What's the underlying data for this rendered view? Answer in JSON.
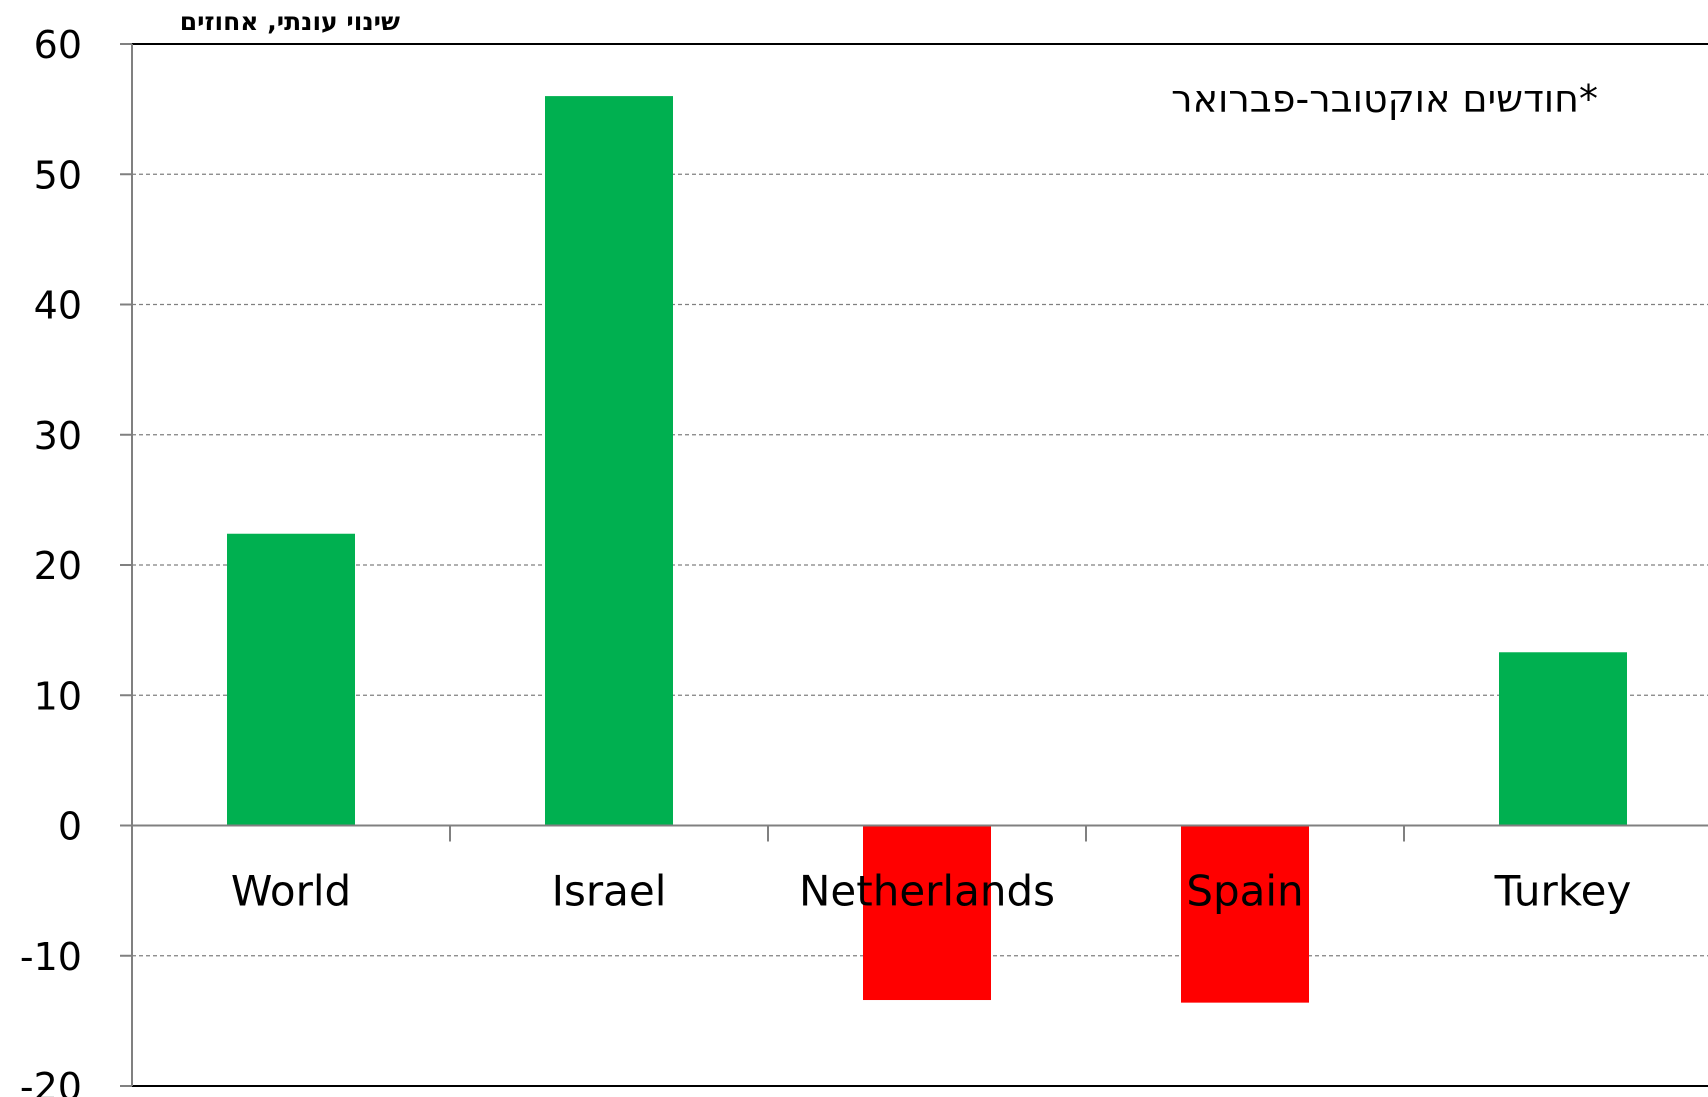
{
  "chart_data": {
    "type": "bar",
    "ylabel": "שינוי עונתי, אחוזים",
    "annotation": "*חודשים אוקטובר-פברואר",
    "categories": [
      "World",
      "Israel",
      "Netherlands",
      "Spain",
      "Turkey"
    ],
    "values": [
      22.4,
      56.0,
      -13.4,
      -13.6,
      13.3
    ],
    "bar_colors": [
      "#00b050",
      "#00b050",
      "#ff0000",
      "#ff0000",
      "#00b050"
    ],
    "ylim": [
      -20,
      60
    ],
    "yticks": [
      60,
      50,
      40,
      30,
      20,
      10,
      0,
      -10,
      -20
    ],
    "ytick_labels": [
      "60",
      "50",
      "40",
      "30",
      "20",
      "10",
      "0",
      "-10",
      "-20"
    ],
    "grid": "horizontal-dashed",
    "legend": "none"
  }
}
